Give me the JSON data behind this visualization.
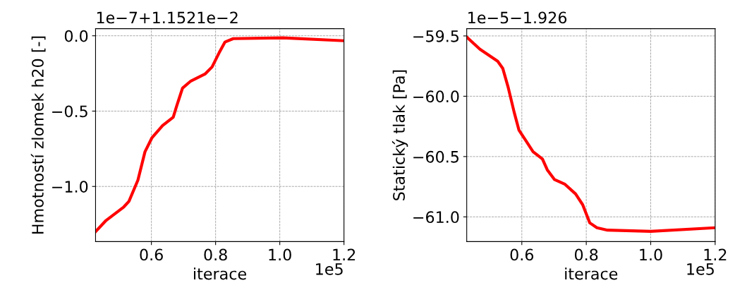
{
  "chart_data": [
    {
      "type": "line",
      "xlabel": "iterace",
      "ylabel": "Hmotností zlomek h20 [-]",
      "annotations": [
        "1e−7+1.1521e−2",
        "1e5"
      ],
      "x": [
        0.426,
        0.459,
        0.514,
        0.53,
        0.558,
        0.58,
        0.602,
        0.635,
        0.668,
        0.679,
        0.697,
        0.723,
        0.767,
        0.789,
        0.811,
        0.829,
        0.855,
        1.009,
        1.2
      ],
      "series": [
        {
          "color": "#ff0000",
          "values": [
            -1.3,
            -1.225,
            -1.136,
            -1.099,
            -0.958,
            -0.77,
            -0.676,
            -0.596,
            -0.54,
            -0.465,
            -0.347,
            -0.3,
            -0.254,
            -0.207,
            -0.113,
            -0.042,
            -0.019,
            -0.014,
            -0.033
          ]
        }
      ],
      "xlim": [
        0.426,
        1.2
      ],
      "xticks": [
        {
          "value": 0.6,
          "label": "0.6"
        },
        {
          "value": 0.8,
          "label": "0.8"
        },
        {
          "value": 1.0,
          "label": "1.0"
        },
        {
          "value": 1.2,
          "label": "1.2"
        }
      ],
      "ylim": [
        -1.366,
        0.047
      ],
      "yticks": [
        {
          "value": -1.0,
          "label": "−1.0"
        },
        {
          "value": -0.5,
          "label": "−0.5"
        },
        {
          "value": 0.0,
          "label": "0.0"
        }
      ],
      "grid": true,
      "line_style": "solid",
      "marker": "none",
      "legend": false
    },
    {
      "type": "line",
      "xlabel": "iterace",
      "ylabel": "Statický tlak [Pa]",
      "annotations": [
        "1e−5−1.926",
        "1e5"
      ],
      "x": [
        0.429,
        0.47,
        0.525,
        0.541,
        0.558,
        0.576,
        0.591,
        0.613,
        0.635,
        0.664,
        0.679,
        0.701,
        0.734,
        0.767,
        0.789,
        0.811,
        0.833,
        0.866,
        1.0,
        1.2
      ],
      "series": [
        {
          "color": "#ff0000",
          "values": [
            -59.51,
            -59.61,
            -59.71,
            -59.77,
            -59.93,
            -60.13,
            -60.28,
            -60.37,
            -60.46,
            -60.52,
            -60.61,
            -60.69,
            -60.73,
            -60.81,
            -60.9,
            -61.05,
            -61.09,
            -61.11,
            -61.12,
            -61.09
          ]
        }
      ],
      "xlim": [
        0.429,
        1.2
      ],
      "xticks": [
        {
          "value": 0.6,
          "label": "0.6"
        },
        {
          "value": 0.8,
          "label": "0.8"
        },
        {
          "value": 1.0,
          "label": "1.0"
        },
        {
          "value": 1.2,
          "label": "1.2"
        }
      ],
      "ylim": [
        -61.205,
        -59.44
      ],
      "yticks": [
        {
          "value": -61.0,
          "label": "−61.0"
        },
        {
          "value": -60.5,
          "label": "−60.5"
        },
        {
          "value": -60.0,
          "label": "−60.0"
        },
        {
          "value": -59.5,
          "label": "−59.5"
        }
      ],
      "grid": true,
      "line_style": "solid",
      "marker": "none",
      "legend": false
    }
  ]
}
